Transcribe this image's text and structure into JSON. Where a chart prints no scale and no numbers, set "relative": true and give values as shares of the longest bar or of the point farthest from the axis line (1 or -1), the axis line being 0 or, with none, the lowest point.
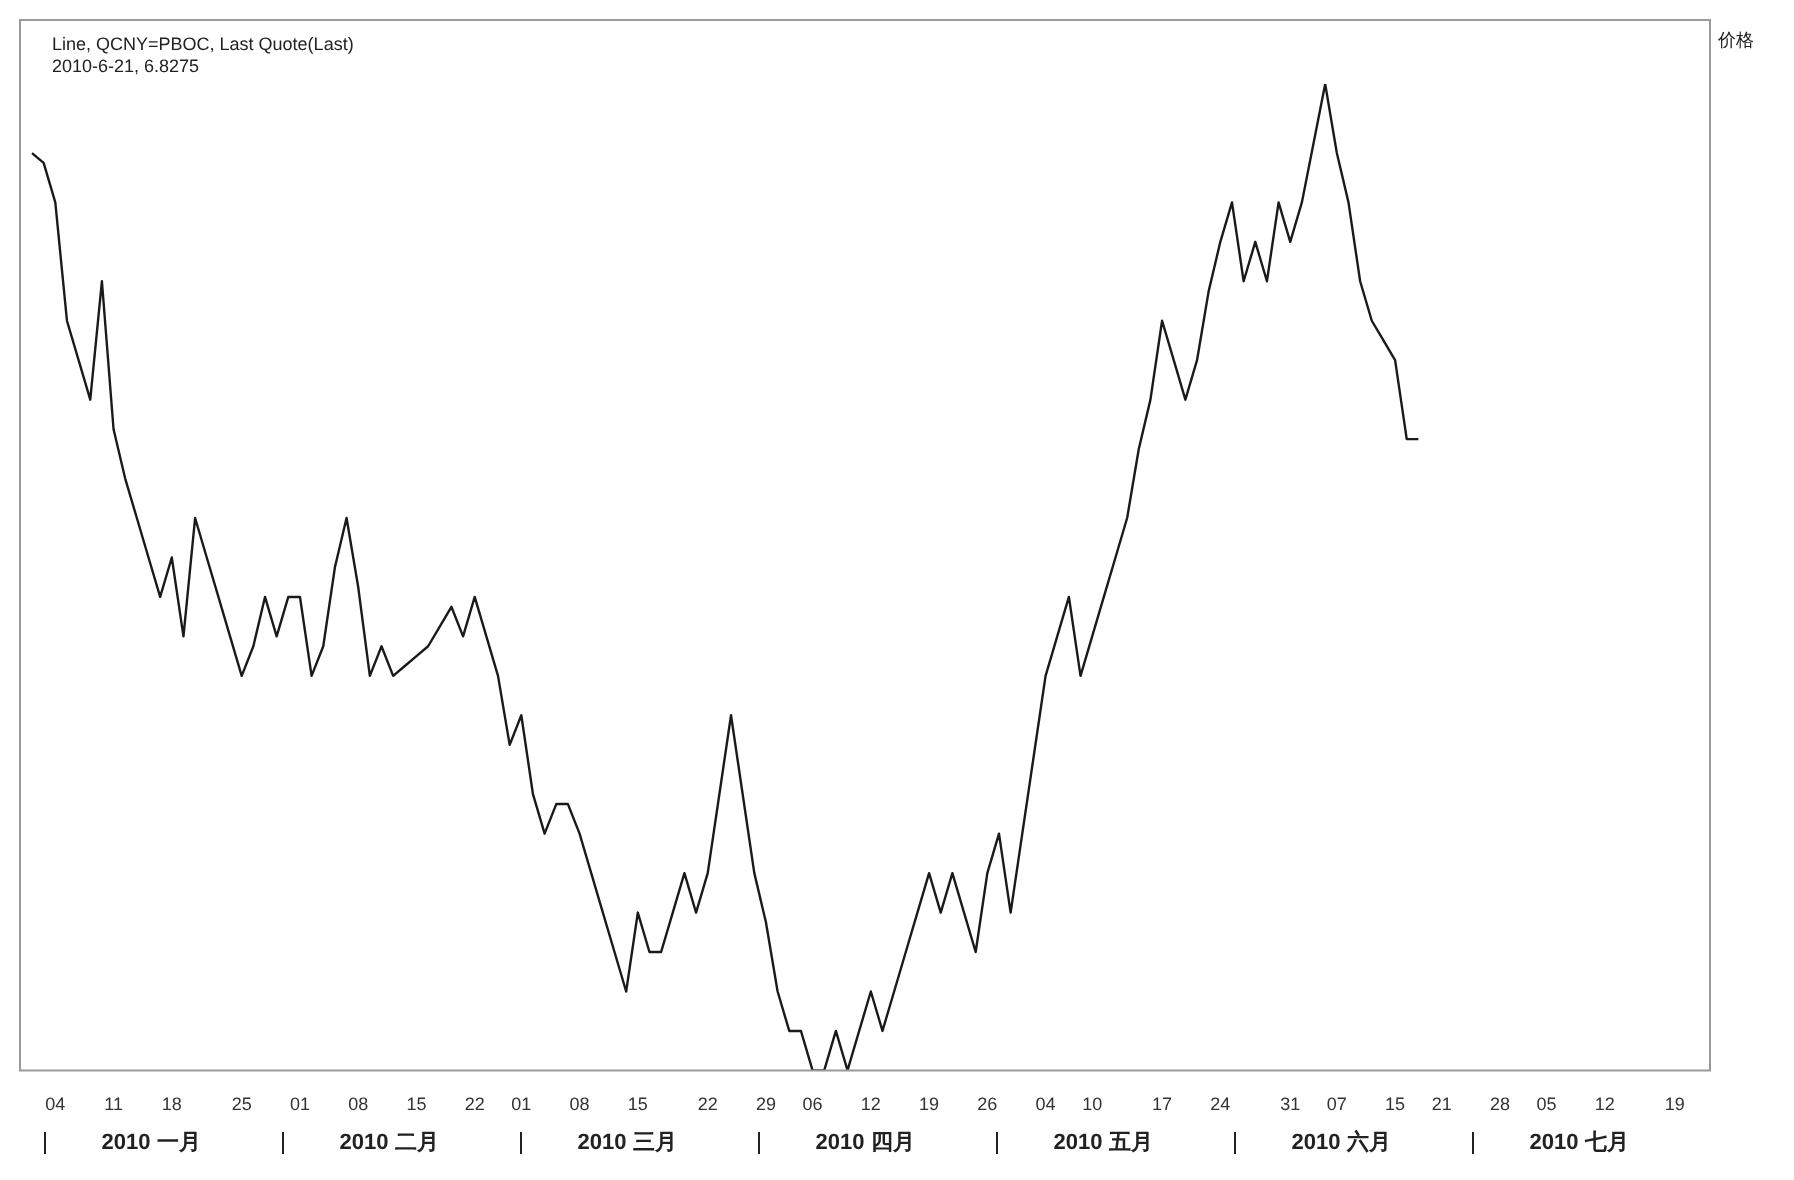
{
  "chart_data": {
    "type": "line",
    "relative": true,
    "legend": false,
    "title": "Line, QCNY=PBOC, Last Quote(Last)",
    "ylabel": "价格",
    "annotations": [
      "2010-6-21, 6.8275",
      "2010 一月",
      "2010 二月",
      "2010 三月",
      "2010 四月",
      "2010 五月",
      "2010 六月",
      "2010 七月"
    ],
    "categories": [
      null,
      null,
      "04",
      null,
      null,
      null,
      null,
      "11",
      null,
      null,
      null,
      null,
      "18",
      null,
      null,
      null,
      null,
      null,
      "25",
      null,
      null,
      null,
      null,
      "01",
      null,
      null,
      null,
      null,
      "08",
      null,
      null,
      null,
      null,
      "15",
      null,
      null,
      null,
      null,
      "22",
      null,
      null,
      null,
      "01",
      null,
      null,
      null,
      null,
      "08",
      null,
      null,
      null,
      null,
      "15",
      null,
      null,
      null,
      null,
      null,
      "22",
      null,
      null,
      null,
      null,
      "29",
      null,
      null,
      null,
      "06",
      null,
      null,
      null,
      null,
      "12",
      null,
      null,
      null,
      null,
      "19",
      null,
      null,
      null,
      null,
      "26",
      null,
      null,
      null,
      null,
      "04",
      null,
      null,
      null,
      "10",
      null,
      null,
      null,
      null,
      null,
      "17",
      null,
      null,
      null,
      null,
      "24",
      null,
      null,
      null,
      null,
      null,
      "31",
      null,
      null,
      null,
      "07",
      null,
      null,
      null,
      null,
      "15",
      null,
      null,
      null,
      "21",
      null,
      null,
      null,
      null,
      "28",
      null,
      null,
      null,
      "05",
      null,
      null,
      null,
      null,
      "12",
      null,
      null,
      null,
      null,
      null,
      "19",
      null,
      null
    ],
    "series": [
      {
        "color": "#1a1a1a",
        "values": [
          0.93,
          0.92,
          0.88,
          0.76,
          0.72,
          0.68,
          0.8,
          0.65,
          0.6,
          0.56,
          0.52,
          0.48,
          0.52,
          0.44,
          0.56,
          0.52,
          0.48,
          0.44,
          0.4,
          0.43,
          0.48,
          0.44,
          0.48,
          0.48,
          0.4,
          0.43,
          0.51,
          0.56,
          0.49,
          0.4,
          0.43,
          0.4,
          0.41,
          0.42,
          0.43,
          0.45,
          0.47,
          0.44,
          0.48,
          0.44,
          0.4,
          0.33,
          0.36,
          0.28,
          0.24,
          0.27,
          0.27,
          0.24,
          0.2,
          0.16,
          0.12,
          0.08,
          0.16,
          0.12,
          0.12,
          0.16,
          0.2,
          0.16,
          0.2,
          0.28,
          0.36,
          0.28,
          0.2,
          0.15,
          0.08,
          0.04,
          0.04,
          0,
          0,
          0.04,
          0,
          0.04,
          0.08,
          0.04,
          0.08,
          0.12,
          0.16,
          0.2,
          0.16,
          0.2,
          0.16,
          0.12,
          0.2,
          0.24,
          0.16,
          0.24,
          0.32,
          0.4,
          0.44,
          0.48,
          0.4,
          0.44,
          0.48,
          0.52,
          0.56,
          0.63,
          0.68,
          0.76,
          0.72,
          0.68,
          0.72,
          0.79,
          0.84,
          0.88,
          0.8,
          0.84,
          0.8,
          0.88,
          0.84,
          0.88,
          0.94,
          1,
          0.93,
          0.88,
          0.8,
          0.76,
          0.74,
          0.72,
          0.64,
          0.64,
          null,
          null,
          null,
          null,
          null,
          null,
          null,
          null,
          null,
          null,
          null,
          null,
          null,
          null,
          null,
          null,
          null,
          null,
          null,
          null,
          null,
          null,
          null,
          null
        ]
      }
    ]
  }
}
